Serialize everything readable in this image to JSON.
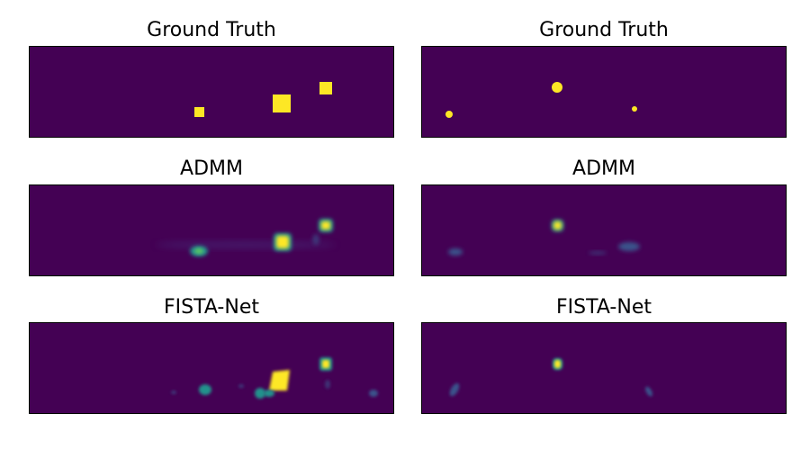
{
  "figure": {
    "background_color": "#440154",
    "left_column": {
      "titles": [
        "Ground Truth",
        "ADMM",
        "FISTA-Net"
      ]
    },
    "right_column": {
      "titles": [
        "Ground Truth",
        "ADMM",
        "FISTA-Net"
      ]
    },
    "colormap": [
      "#440154",
      "#3b528b",
      "#21918c",
      "#5ec962",
      "#fde725"
    ]
  }
}
